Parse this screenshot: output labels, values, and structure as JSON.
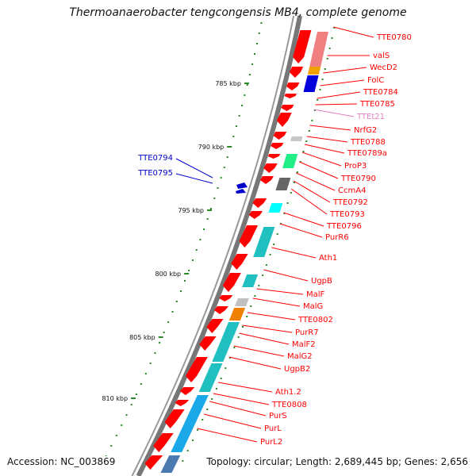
{
  "title": "Thermoanaerobacter tengcongensis MB4, complete genome",
  "footer": {
    "accession": "Accession: NC_003869",
    "topology": "Topology: circular; Length: 2,689,445 bp; Genes: 2,656"
  },
  "colors": {
    "gene": "#ff0000",
    "trna_label": "#e080c0",
    "reverse_gene": "#0000cc",
    "tick": "#2a8a2a",
    "ruler": "#888888"
  },
  "ruler_ticks": [
    "785 kbp",
    "790 kbp",
    "795 kbp",
    "800 kbp",
    "805 kbp",
    "810 kbp"
  ],
  "left_labels": [
    "TTE0794",
    "TTE0795"
  ],
  "right_labels": [
    {
      "text": "TTE0780",
      "kind": "gene"
    },
    {
      "text": "valS",
      "kind": "gene"
    },
    {
      "text": "WecD2",
      "kind": "gene"
    },
    {
      "text": "FolC",
      "kind": "gene"
    },
    {
      "text": "TTE0784",
      "kind": "gene"
    },
    {
      "text": "TTE0785",
      "kind": "gene"
    },
    {
      "text": "TTEt21",
      "kind": "trna"
    },
    {
      "text": "NrfG2",
      "kind": "gene"
    },
    {
      "text": "TTE0788",
      "kind": "gene"
    },
    {
      "text": "TTE0789a",
      "kind": "gene"
    },
    {
      "text": "ProP3",
      "kind": "gene"
    },
    {
      "text": "TTE0790",
      "kind": "gene"
    },
    {
      "text": "CcmA4",
      "kind": "gene"
    },
    {
      "text": "TTE0792",
      "kind": "gene"
    },
    {
      "text": "TTE0793",
      "kind": "gene"
    },
    {
      "text": "TTE0796",
      "kind": "gene"
    },
    {
      "text": "PurR6",
      "kind": "gene"
    },
    {
      "text": "Ath1",
      "kind": "gene"
    },
    {
      "text": "UgpB",
      "kind": "gene"
    },
    {
      "text": "MalF",
      "kind": "gene"
    },
    {
      "text": "MalG",
      "kind": "gene"
    },
    {
      "text": "TTE0802",
      "kind": "gene"
    },
    {
      "text": "PurR7",
      "kind": "gene"
    },
    {
      "text": "MalF2",
      "kind": "gene"
    },
    {
      "text": "MalG2",
      "kind": "gene"
    },
    {
      "text": "UgpB2",
      "kind": "gene"
    },
    {
      "text": "Ath1.2",
      "kind": "gene"
    },
    {
      "text": "TTE0808",
      "kind": "gene"
    },
    {
      "text": "PurS",
      "kind": "gene"
    },
    {
      "text": "PurL",
      "kind": "gene"
    },
    {
      "text": "PurL2",
      "kind": "gene"
    }
  ]
}
